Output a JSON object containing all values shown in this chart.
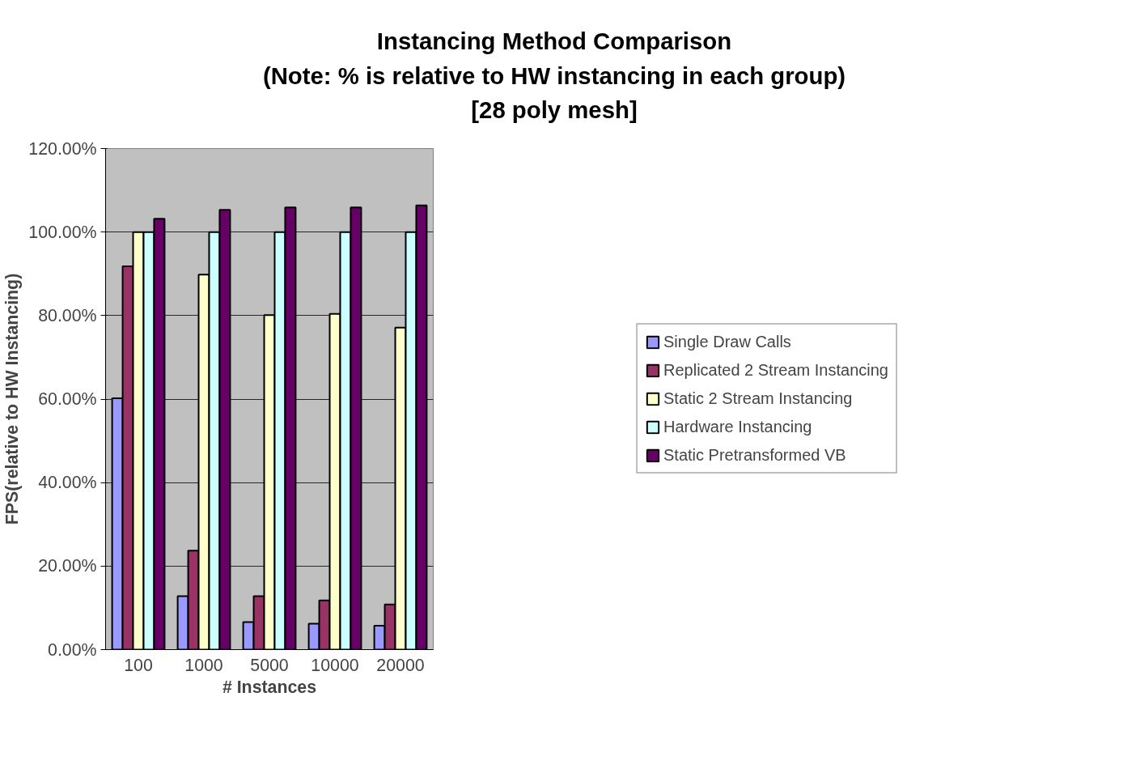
{
  "chart_data": {
    "type": "bar",
    "title": "Instancing Method Comparison\n(Note: % is relative to HW instancing in each group)\n[28 poly mesh]",
    "xlabel": "# Instances",
    "ylabel": "FPS(relative to HW Instancing)",
    "categories": [
      "100",
      "1000",
      "5000",
      "10000",
      "20000"
    ],
    "series": [
      {
        "name": "Single Draw Calls",
        "color": "#9999ff",
        "values": [
          60.2,
          12.8,
          6.6,
          6.2,
          5.7
        ]
      },
      {
        "name": "Replicated 2 Stream Instancing",
        "color": "#993366",
        "values": [
          91.8,
          23.7,
          12.8,
          11.8,
          10.8
        ]
      },
      {
        "name": "Static 2 Stream Instancing",
        "color": "#ffffcc",
        "values": [
          100,
          89.8,
          80.1,
          80.4,
          77.1
        ]
      },
      {
        "name": "Hardware Instancing",
        "color": "#ccffff",
        "values": [
          100,
          100,
          100,
          100,
          100
        ]
      },
      {
        "name": "Static Pretransformed VB",
        "color": "#660066",
        "values": [
          103.2,
          105.3,
          105.9,
          105.9,
          106.4
        ]
      }
    ],
    "ylim": [
      0,
      120
    ],
    "yticks": [
      {
        "value": 0,
        "label": "0.00%"
      },
      {
        "value": 20,
        "label": "20.00%"
      },
      {
        "value": 40,
        "label": "40.00%"
      },
      {
        "value": 60,
        "label": "60.00%"
      },
      {
        "value": 80,
        "label": "80.00%"
      },
      {
        "value": 100,
        "label": "100.00%"
      },
      {
        "value": 120,
        "label": "120.00%"
      }
    ],
    "grid": "y",
    "legend": "right"
  }
}
